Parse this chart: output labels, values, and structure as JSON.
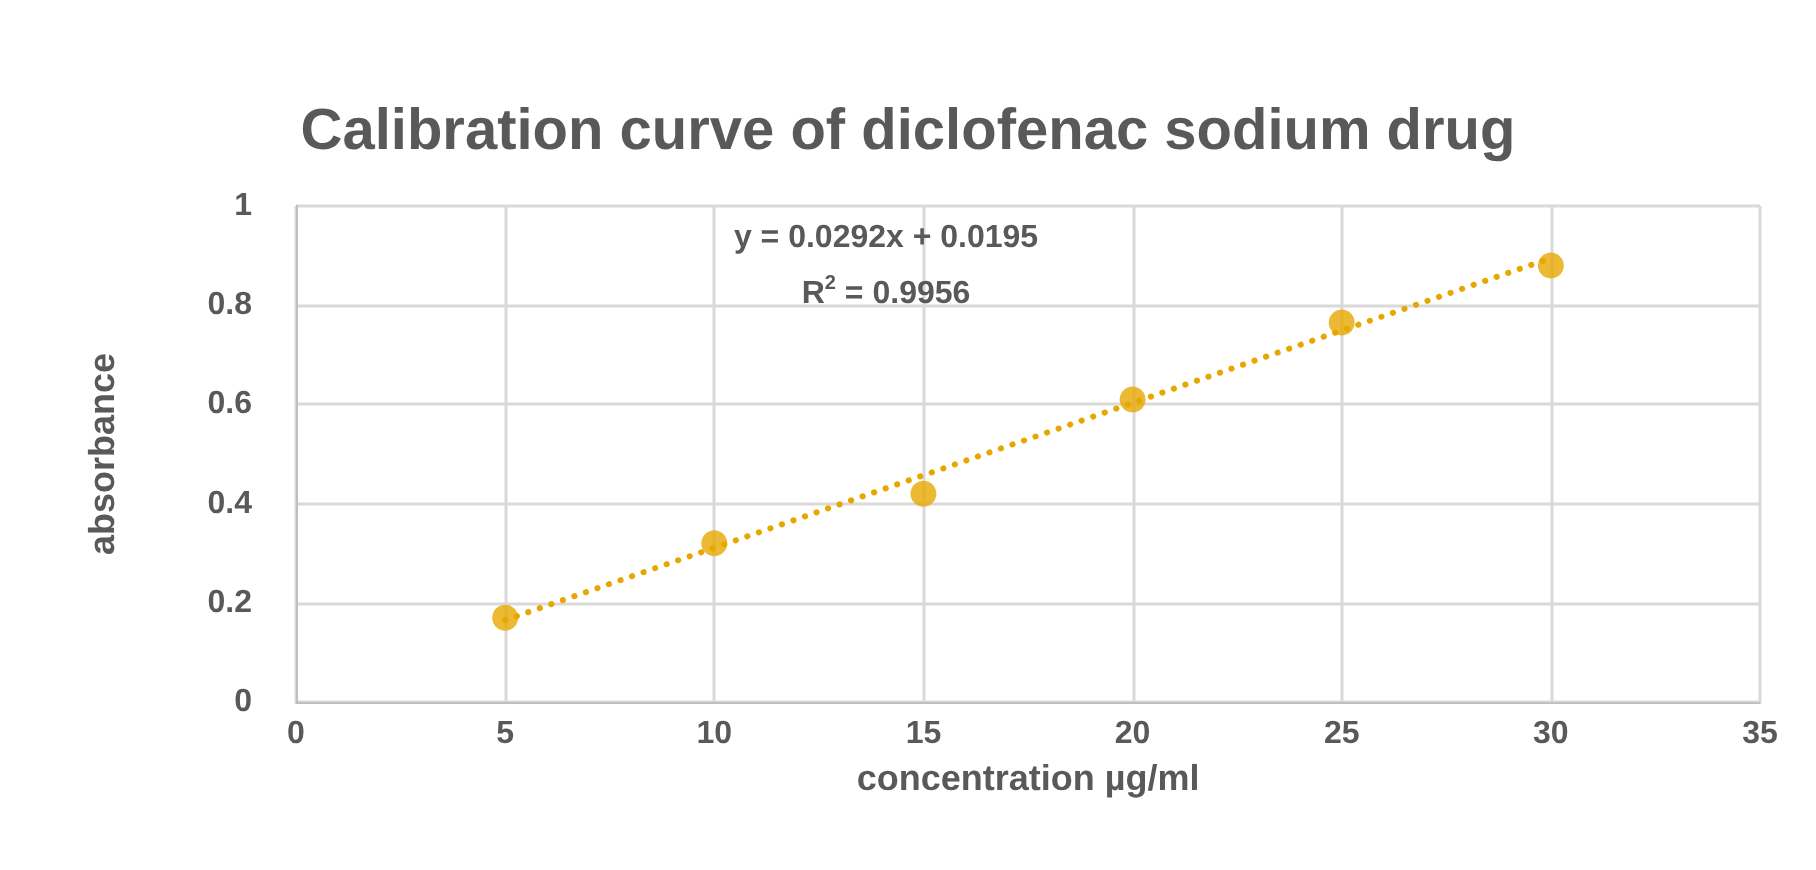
{
  "chart_data": {
    "type": "scatter",
    "title": "Calibration curve of diclofenac sodium drug",
    "xlabel": "concentration µg/ml",
    "ylabel": "absorbance",
    "x": [
      5,
      10,
      15,
      20,
      25,
      30
    ],
    "series": [
      {
        "color": "#e6a800",
        "values": [
          0.17,
          0.32,
          0.42,
          0.61,
          0.765,
          0.88
        ],
        "marker": "circle"
      },
      {
        "type": "line",
        "color": "#e6a800",
        "x": [
          5,
          30
        ],
        "values": [
          0.165,
          0.895
        ],
        "line_style": "dotted",
        "marker": "none"
      }
    ],
    "annotations": [
      "y = 0.0292x + 0.0195",
      "R$^{2}$ = 0.9956"
    ],
    "xlim": [
      0,
      35
    ],
    "xticks": [
      0,
      5,
      10,
      15,
      20,
      25,
      30,
      35
    ],
    "ylim": [
      0,
      1
    ],
    "yticks": [
      0,
      0.2,
      0.4,
      0.6,
      0.8,
      1
    ],
    "grid": true
  }
}
